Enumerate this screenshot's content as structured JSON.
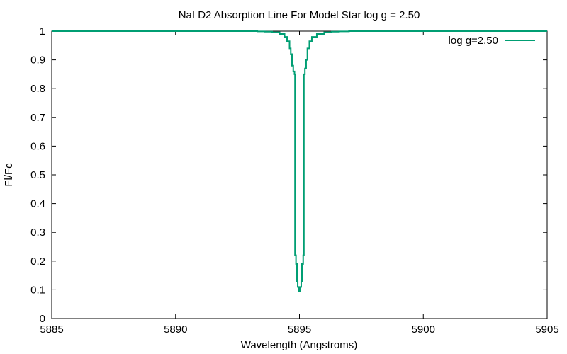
{
  "chart_data": {
    "type": "line",
    "title": "NaI D2 Absorption Line For Model Star log g = 2.50",
    "xlabel": "Wavelength (Angstroms)",
    "ylabel": "Fl/Fc",
    "xlim": [
      5885,
      5905
    ],
    "ylim": [
      0,
      1
    ],
    "x_ticks": [
      5885,
      5890,
      5895,
      5900,
      5905
    ],
    "y_ticks": [
      0,
      0.1,
      0.2,
      0.3,
      0.4,
      0.5,
      0.6,
      0.7,
      0.8,
      0.9,
      1
    ],
    "x_tick_labels": [
      "5885",
      "5890",
      "5895",
      "5900",
      "5905"
    ],
    "y_tick_labels": [
      "0",
      "0.1",
      "0.2",
      "0.3",
      "0.4",
      "0.5",
      "0.6",
      "0.7",
      "0.8",
      "0.9",
      "1"
    ],
    "grid": false,
    "legend_position": "top-right",
    "series": [
      {
        "name": "log g=2.50",
        "color": "#009e73",
        "step": true,
        "points": [
          [
            5885.0,
            1.0
          ],
          [
            5893.0,
            1.0
          ],
          [
            5893.3,
            0.999
          ],
          [
            5893.6,
            0.998
          ],
          [
            5893.9,
            0.996
          ],
          [
            5894.2,
            0.99
          ],
          [
            5894.4,
            0.98
          ],
          [
            5894.5,
            0.965
          ],
          [
            5894.6,
            0.94
          ],
          [
            5894.65,
            0.92
          ],
          [
            5894.7,
            0.88
          ],
          [
            5894.75,
            0.86
          ],
          [
            5894.8,
            0.85
          ],
          [
            5894.82,
            0.22
          ],
          [
            5894.86,
            0.19
          ],
          [
            5894.9,
            0.13
          ],
          [
            5894.93,
            0.11
          ],
          [
            5894.98,
            0.095
          ],
          [
            5895.03,
            0.11
          ],
          [
            5895.07,
            0.13
          ],
          [
            5895.1,
            0.19
          ],
          [
            5895.15,
            0.22
          ],
          [
            5895.18,
            0.85
          ],
          [
            5895.22,
            0.87
          ],
          [
            5895.27,
            0.9
          ],
          [
            5895.32,
            0.94
          ],
          [
            5895.4,
            0.965
          ],
          [
            5895.5,
            0.98
          ],
          [
            5895.7,
            0.99
          ],
          [
            5896.0,
            0.996
          ],
          [
            5896.3,
            0.998
          ],
          [
            5896.6,
            0.999
          ],
          [
            5897.0,
            1.0
          ],
          [
            5905.0,
            1.0
          ]
        ]
      }
    ]
  }
}
